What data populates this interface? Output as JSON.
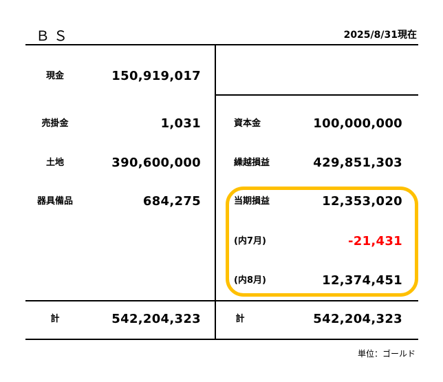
{
  "header": {
    "title": "ＢＳ",
    "date": "2025/8/31現在"
  },
  "assets": [
    {
      "label": "現金",
      "value": "150,919,017"
    },
    {
      "label": "売掛金",
      "value": "1,031"
    },
    {
      "label": "土地",
      "value": "390,600,000"
    },
    {
      "label": "器具備品",
      "value": "684,275"
    }
  ],
  "equity": [
    {
      "label": "資本金",
      "value": "100,000,000"
    },
    {
      "label": "繰越損益",
      "value": "429,851,303"
    },
    {
      "label": "当期損益",
      "value": "12,353,020"
    },
    {
      "label": "(内7月)",
      "value": "-21,431"
    },
    {
      "label": "(内8月)",
      "value": "12,374,451"
    }
  ],
  "totals": {
    "left_label": "計",
    "left_value": "542,204,323",
    "right_label": "計",
    "right_value": "542,204,323"
  },
  "footer": {
    "unit": "単位：ゴールド"
  },
  "colors": {
    "highlight": "#FFC000",
    "negative": "#FF0000"
  }
}
